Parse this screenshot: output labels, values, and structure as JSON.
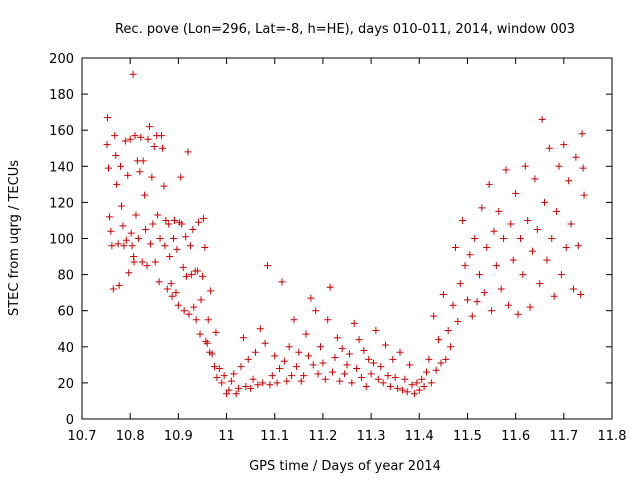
{
  "chart_data": {
    "type": "scatter",
    "title": "Rec. pove (Lon=296, Lat=-8, h=HE), days 010-011, 2014, window 003",
    "xlabel": "GPS time / Days of year 2014",
    "ylabel": "STEC from uqrg / TECUs",
    "xlim": [
      10.7,
      11.8
    ],
    "ylim": [
      0,
      200
    ],
    "x_ticks": [
      "10.7",
      "10.8",
      "10.9",
      "11",
      "11.1",
      "11.2",
      "11.3",
      "11.4",
      "11.5",
      "11.6",
      "11.7",
      "11.8"
    ],
    "y_ticks": [
      "0",
      "20",
      "40",
      "60",
      "80",
      "100",
      "120",
      "140",
      "160",
      "180",
      "200"
    ],
    "grid": false,
    "color": "#cc0000",
    "series": [
      {
        "marker": "plus",
        "points": [
          [
            10.752,
            152
          ],
          [
            10.753,
            167
          ],
          [
            10.755,
            139
          ],
          [
            10.757,
            112
          ],
          [
            10.76,
            104
          ],
          [
            10.762,
            96
          ],
          [
            10.765,
            72
          ],
          [
            10.768,
            157
          ],
          [
            10.77,
            146
          ],
          [
            10.772,
            130
          ],
          [
            10.775,
            97
          ],
          [
            10.777,
            74
          ],
          [
            10.78,
            140
          ],
          [
            10.782,
            118
          ],
          [
            10.785,
            107
          ],
          [
            10.787,
            96
          ],
          [
            10.79,
            154
          ],
          [
            10.792,
            99
          ],
          [
            10.795,
            135
          ],
          [
            10.797,
            81
          ],
          [
            10.8,
            155
          ],
          [
            10.802,
            103
          ],
          [
            10.804,
            96
          ],
          [
            10.806,
            191
          ],
          [
            10.807,
            90
          ],
          [
            10.808,
            87
          ],
          [
            10.81,
            157
          ],
          [
            10.812,
            113
          ],
          [
            10.815,
            143
          ],
          [
            10.817,
            100
          ],
          [
            10.82,
            137
          ],
          [
            10.822,
            156
          ],
          [
            10.825,
            87
          ],
          [
            10.827,
            143
          ],
          [
            10.83,
            124
          ],
          [
            10.832,
            105
          ],
          [
            10.835,
            85
          ],
          [
            10.837,
            155
          ],
          [
            10.84,
            162
          ],
          [
            10.842,
            97
          ],
          [
            10.845,
            134
          ],
          [
            10.847,
            108
          ],
          [
            10.85,
            151
          ],
          [
            10.852,
            87
          ],
          [
            10.855,
            157
          ],
          [
            10.857,
            113
          ],
          [
            10.86,
            76
          ],
          [
            10.862,
            100
          ],
          [
            10.865,
            157
          ],
          [
            10.867,
            150
          ],
          [
            10.87,
            129
          ],
          [
            10.872,
            96
          ],
          [
            10.874,
            110
          ],
          [
            10.877,
            72
          ],
          [
            10.88,
            108
          ],
          [
            10.882,
            90
          ],
          [
            10.885,
            75
          ],
          [
            10.887,
            68
          ],
          [
            10.89,
            100
          ],
          [
            10.892,
            110
          ],
          [
            10.895,
            70
          ],
          [
            10.897,
            94
          ],
          [
            10.9,
            63
          ],
          [
            10.902,
            109
          ],
          [
            10.905,
            134
          ],
          [
            10.907,
            108
          ],
          [
            10.91,
            84
          ],
          [
            10.912,
            60
          ],
          [
            10.915,
            101
          ],
          [
            10.917,
            79
          ],
          [
            10.92,
            148
          ],
          [
            10.922,
            58
          ],
          [
            10.925,
            96
          ],
          [
            10.927,
            80
          ],
          [
            10.93,
            105
          ],
          [
            10.932,
            62
          ],
          [
            10.935,
            82
          ],
          [
            10.937,
            55
          ],
          [
            10.94,
            82
          ],
          [
            10.942,
            109
          ],
          [
            10.945,
            47
          ],
          [
            10.947,
            66
          ],
          [
            10.95,
            79
          ],
          [
            10.952,
            111
          ],
          [
            10.955,
            95
          ],
          [
            10.957,
            43
          ],
          [
            10.96,
            42
          ],
          [
            10.962,
            55
          ],
          [
            10.965,
            37
          ],
          [
            10.967,
            71
          ],
          [
            10.97,
            36
          ],
          [
            10.975,
            29
          ],
          [
            10.978,
            48
          ],
          [
            10.98,
            23
          ],
          [
            10.985,
            28
          ],
          [
            10.99,
            20
          ],
          [
            10.995,
            24
          ],
          [
            11.0,
            14
          ],
          [
            11.005,
            16
          ],
          [
            11.01,
            21
          ],
          [
            11.015,
            25
          ],
          [
            11.02,
            14
          ],
          [
            11.025,
            17
          ],
          [
            11.03,
            29
          ],
          [
            11.035,
            45
          ],
          [
            11.04,
            18
          ],
          [
            11.045,
            33
          ],
          [
            11.05,
            17
          ],
          [
            11.055,
            22
          ],
          [
            11.06,
            37
          ],
          [
            11.065,
            19
          ],
          [
            11.07,
            50
          ],
          [
            11.075,
            20
          ],
          [
            11.08,
            42
          ],
          [
            11.085,
            85
          ],
          [
            11.09,
            19
          ],
          [
            11.095,
            24
          ],
          [
            11.1,
            35
          ],
          [
            11.105,
            20
          ],
          [
            11.11,
            28
          ],
          [
            11.115,
            76
          ],
          [
            11.12,
            32
          ],
          [
            11.125,
            21
          ],
          [
            11.13,
            40
          ],
          [
            11.135,
            24
          ],
          [
            11.14,
            55
          ],
          [
            11.145,
            29
          ],
          [
            11.15,
            37
          ],
          [
            11.155,
            21
          ],
          [
            11.16,
            24
          ],
          [
            11.165,
            47
          ],
          [
            11.17,
            35
          ],
          [
            11.175,
            67
          ],
          [
            11.18,
            30
          ],
          [
            11.185,
            60
          ],
          [
            11.19,
            25
          ],
          [
            11.195,
            40
          ],
          [
            11.2,
            31
          ],
          [
            11.205,
            22
          ],
          [
            11.21,
            55
          ],
          [
            11.215,
            73
          ],
          [
            11.22,
            26
          ],
          [
            11.225,
            34
          ],
          [
            11.23,
            45
          ],
          [
            11.235,
            21
          ],
          [
            11.24,
            39
          ],
          [
            11.245,
            25
          ],
          [
            11.25,
            30
          ],
          [
            11.255,
            36
          ],
          [
            11.26,
            20
          ],
          [
            11.265,
            53
          ],
          [
            11.27,
            28
          ],
          [
            11.275,
            44
          ],
          [
            11.28,
            23
          ],
          [
            11.285,
            38
          ],
          [
            11.29,
            18
          ],
          [
            11.295,
            33
          ],
          [
            11.3,
            25
          ],
          [
            11.305,
            31
          ],
          [
            11.31,
            49
          ],
          [
            11.315,
            22
          ],
          [
            11.32,
            29
          ],
          [
            11.325,
            20
          ],
          [
            11.33,
            41
          ],
          [
            11.335,
            24
          ],
          [
            11.34,
            18
          ],
          [
            11.345,
            33
          ],
          [
            11.35,
            23
          ],
          [
            11.355,
            17
          ],
          [
            11.36,
            37
          ],
          [
            11.365,
            16
          ],
          [
            11.37,
            22
          ],
          [
            11.375,
            15
          ],
          [
            11.38,
            30
          ],
          [
            11.385,
            19
          ],
          [
            11.39,
            14
          ],
          [
            11.395,
            20
          ],
          [
            11.4,
            16
          ],
          [
            11.405,
            22
          ],
          [
            11.41,
            18
          ],
          [
            11.415,
            26
          ],
          [
            11.42,
            33
          ],
          [
            11.425,
            20
          ],
          [
            11.43,
            57
          ],
          [
            11.435,
            27
          ],
          [
            11.44,
            44
          ],
          [
            11.445,
            31
          ],
          [
            11.45,
            69
          ],
          [
            11.455,
            33
          ],
          [
            11.46,
            49
          ],
          [
            11.465,
            40
          ],
          [
            11.47,
            63
          ],
          [
            11.475,
            95
          ],
          [
            11.48,
            54
          ],
          [
            11.485,
            75
          ],
          [
            11.49,
            110
          ],
          [
            11.495,
            85
          ],
          [
            11.5,
            66
          ],
          [
            11.505,
            91
          ],
          [
            11.51,
            57
          ],
          [
            11.515,
            100
          ],
          [
            11.52,
            65
          ],
          [
            11.525,
            80
          ],
          [
            11.53,
            117
          ],
          [
            11.535,
            70
          ],
          [
            11.54,
            95
          ],
          [
            11.545,
            130
          ],
          [
            11.55,
            60
          ],
          [
            11.555,
            104
          ],
          [
            11.56,
            85
          ],
          [
            11.565,
            115
          ],
          [
            11.57,
            72
          ],
          [
            11.575,
            100
          ],
          [
            11.58,
            138
          ],
          [
            11.585,
            63
          ],
          [
            11.59,
            108
          ],
          [
            11.595,
            88
          ],
          [
            11.6,
            125
          ],
          [
            11.605,
            58
          ],
          [
            11.61,
            100
          ],
          [
            11.615,
            80
          ],
          [
            11.62,
            140
          ],
          [
            11.625,
            110
          ],
          [
            11.63,
            62
          ],
          [
            11.635,
            93
          ],
          [
            11.64,
            133
          ],
          [
            11.645,
            105
          ],
          [
            11.65,
            75
          ],
          [
            11.655,
            166
          ],
          [
            11.66,
            120
          ],
          [
            11.665,
            88
          ],
          [
            11.67,
            150
          ],
          [
            11.675,
            100
          ],
          [
            11.68,
            68
          ],
          [
            11.685,
            115
          ],
          [
            11.69,
            140
          ],
          [
            11.695,
            80
          ],
          [
            11.7,
            152
          ],
          [
            11.705,
            95
          ],
          [
            11.71,
            132
          ],
          [
            11.715,
            108
          ],
          [
            11.72,
            72
          ],
          [
            11.725,
            145
          ],
          [
            11.73,
            96
          ],
          [
            11.735,
            69
          ],
          [
            11.738,
            158
          ],
          [
            11.74,
            139
          ],
          [
            11.742,
            124
          ]
        ]
      }
    ]
  }
}
